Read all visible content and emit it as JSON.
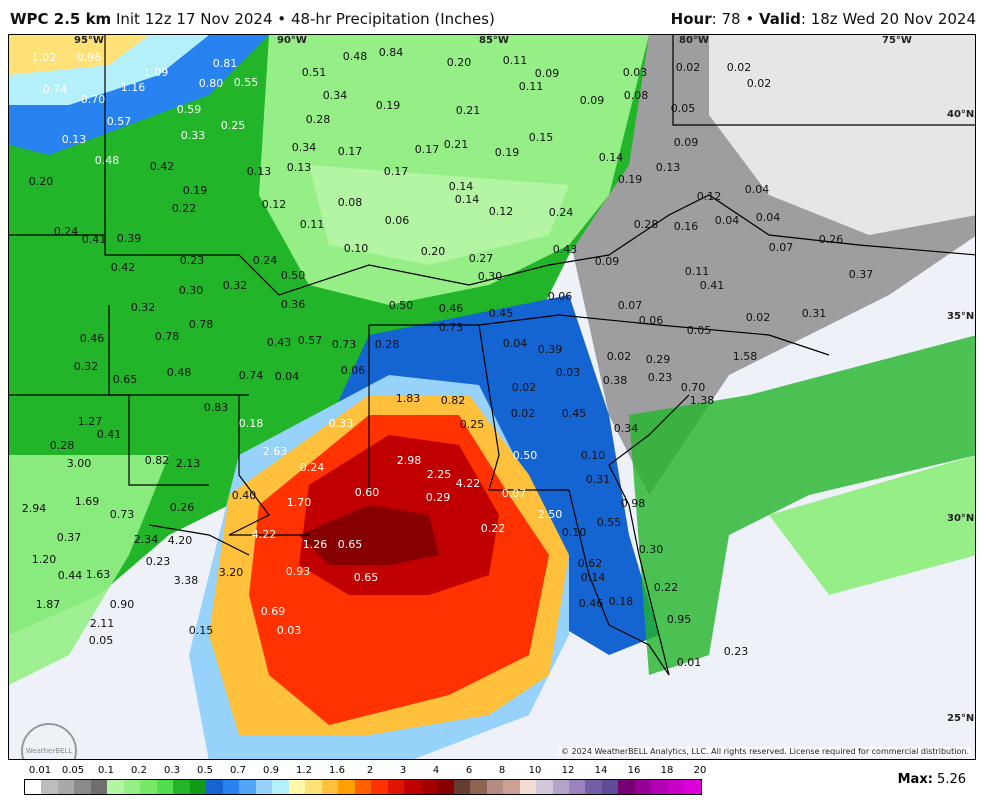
{
  "header": {
    "model": "WPC 2.5 km",
    "init": "Init 12z 17 Nov 2024",
    "sep": "•",
    "product": "48-hr Precipitation (Inches)",
    "hour_label": "Hour",
    "hour": "78",
    "valid_label": "Valid",
    "valid": "18z Wed 20 Nov 2024"
  },
  "coords": {
    "lon": [
      "95°W",
      "90°W",
      "85°W",
      "80°W",
      "75°W"
    ],
    "lat": [
      "40°N",
      "35°N",
      "30°N",
      "25°N"
    ]
  },
  "copyright": "© 2024 WeatherBELL Analytics, LLC. All rights reserved. License required for commercial distribution.",
  "logo": "WeatherBELL",
  "legend": {
    "labels": [
      "0.01",
      "0.05",
      "0.1",
      "0.2",
      "0.3",
      "0.5",
      "0.7",
      "0.9",
      "1.2",
      "1.6",
      "2",
      "3",
      "4",
      "6",
      "8",
      "10",
      "12",
      "14",
      "16",
      "18",
      "20"
    ],
    "colors": [
      "#ffffff",
      "#bdbdbd",
      "#a9a9a9",
      "#8a8a8a",
      "#6e6e6e",
      "#b3f5a3",
      "#95ef86",
      "#78e86a",
      "#52dd4b",
      "#22b52a",
      "#0f9a18",
      "#1464d2",
      "#2882f0",
      "#50a5f5",
      "#96d2fa",
      "#b4f0fa",
      "#fff8a6",
      "#ffe178",
      "#ffc03c",
      "#ffa000",
      "#ff6000",
      "#ff3200",
      "#e11400",
      "#c00000",
      "#a50000",
      "#870000",
      "#643c32",
      "#8c6450",
      "#b48c82",
      "#cda096",
      "#f0dcd2",
      "#d2c8dc",
      "#b4a5c8",
      "#9b82be",
      "#735fa5",
      "#5f4b96",
      "#780073",
      "#960096",
      "#b400b4",
      "#c800c8",
      "#dc00dc"
    ]
  },
  "max_label": "Max:",
  "max_value": "5.26",
  "values": [
    "1.02",
    "0.96",
    "1.09",
    "0.81",
    "0.80",
    "0.55",
    "0.48",
    "0.84",
    "0.20",
    "0.11",
    "0.09",
    "0.03",
    "0.02",
    "0.02",
    "0.02",
    "0.74",
    "0.70",
    "1.16",
    "0.51",
    "0.34",
    "0.28",
    "0.19",
    "0.21",
    "0.11",
    "0.09",
    "0.08",
    "0.05",
    "0.57",
    "0.59",
    "0.33",
    "0.25",
    "0.13",
    "0.48",
    "0.42",
    "0.34",
    "0.17",
    "0.17",
    "0.21",
    "0.19",
    "0.15",
    "0.14",
    "0.09",
    "0.20",
    "0.13",
    "0.19",
    "0.13",
    "0.17",
    "0.19",
    "0.13",
    "0.14",
    "0.22",
    "0.12",
    "0.08",
    "0.14",
    "0.12",
    "0.24",
    "0.12",
    "0.04",
    "0.24",
    "0.39",
    "0.41",
    "0.11",
    "0.06",
    "0.10",
    "0.20",
    "0.27",
    "0.43",
    "0.28",
    "0.16",
    "0.04",
    "0.04",
    "0.07",
    "0.26",
    "0.23",
    "0.24",
    "0.50",
    "0.30",
    "0.09",
    "0.11",
    "0.41",
    "0.42",
    "0.30",
    "0.32",
    "0.36",
    "0.50",
    "0.46",
    "0.06",
    "0.07",
    "0.06",
    "0.05",
    "0.02",
    "0.31",
    "0.37",
    "0.32",
    "0.78",
    "0.78",
    "0.73",
    "0.45",
    "0.04",
    "0.39",
    "0.38",
    "0.43",
    "0.57",
    "0.73",
    "0.28",
    "0.06",
    "0.03",
    "0.29",
    "0.23",
    "0.46",
    "0.32",
    "0.48",
    "0.65",
    "0.74",
    "0.04",
    "0.02",
    "0.02",
    "1.38",
    "1.58",
    "1.83",
    "0.82",
    "0.25",
    "0.02",
    "0.45",
    "0.70",
    "0.83",
    "0.18",
    "0.33",
    "0.34",
    "1.27",
    "0.41",
    "0.50",
    "0.10",
    "0.31",
    "0.28",
    "0.82",
    "2.13",
    "2.63",
    "0.24",
    "2.98",
    "3.00",
    "2.25",
    "0.29",
    "4.22",
    "1.69",
    "0.60",
    "0.07",
    "0.98",
    "2.94",
    "0.40",
    "1.70",
    "0.26",
    "2.50",
    "0.73",
    "0.22",
    "0.55",
    "0.37",
    "2.34",
    "4.20",
    "4.22",
    "1.26",
    "0.65",
    "0.10",
    "0.30",
    "1.20",
    "0.23",
    "0.62",
    "0.44",
    "1.63",
    "3.38",
    "3.20",
    "0.93",
    "0.65",
    "0.14",
    "0.22",
    "1.87",
    "0.90",
    "0.69",
    "0.46",
    "0.18",
    "0.95",
    "2.11",
    "0.15",
    "0.03",
    "0.05",
    "0.23",
    "0.01"
  ]
}
